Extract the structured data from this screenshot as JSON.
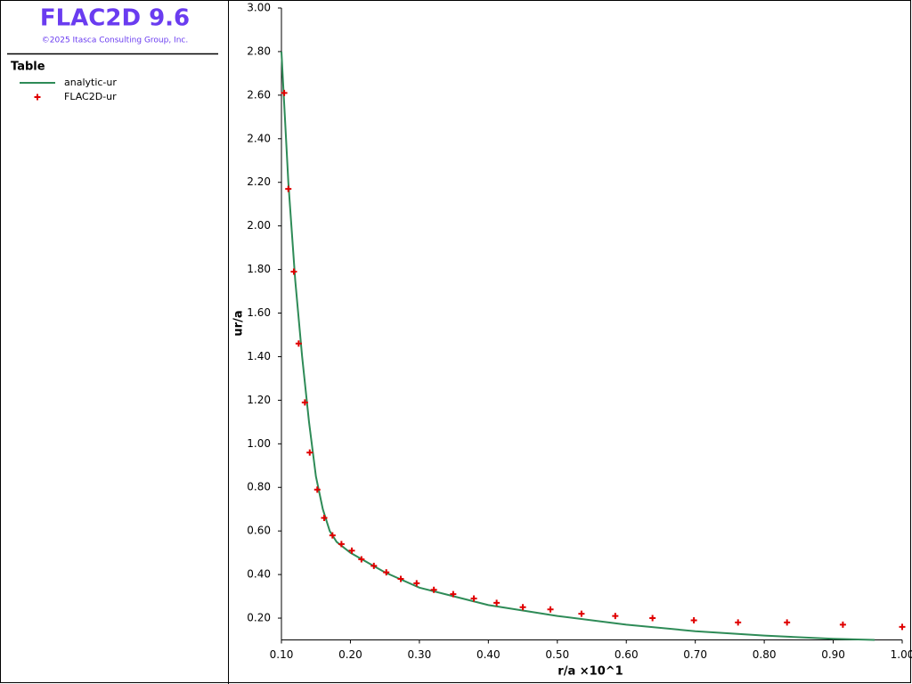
{
  "app": {
    "title": "FLAC2D 9.6",
    "copyright": "©2025 Itasca Consulting Group, Inc.",
    "legend_title": "Table"
  },
  "chart_data": {
    "type": "line",
    "xlabel": "r/a ×10^1",
    "ylabel": "ur/a",
    "xlim": [
      0.1,
      1.0
    ],
    "ylim": [
      0.1,
      3.0
    ],
    "xticks": [
      {
        "value": 0.1,
        "label": "0.10"
      },
      {
        "value": 0.2,
        "label": "0.20"
      },
      {
        "value": 0.3,
        "label": "0.30"
      },
      {
        "value": 0.4,
        "label": "0.40"
      },
      {
        "value": 0.5,
        "label": "0.50"
      },
      {
        "value": 0.6,
        "label": "0.60"
      },
      {
        "value": 0.7,
        "label": "0.70"
      },
      {
        "value": 0.8,
        "label": "0.80"
      },
      {
        "value": 0.9,
        "label": "0.90"
      },
      {
        "value": 1.0,
        "label": "1.00"
      }
    ],
    "yticks": [
      {
        "value": 0.2,
        "label": "0.20"
      },
      {
        "value": 0.4,
        "label": "0.40"
      },
      {
        "value": 0.6,
        "label": "0.60"
      },
      {
        "value": 0.8,
        "label": "0.80"
      },
      {
        "value": 1.0,
        "label": "1.00"
      },
      {
        "value": 1.2,
        "label": "1.20"
      },
      {
        "value": 1.4,
        "label": "1.40"
      },
      {
        "value": 1.6,
        "label": "1.60"
      },
      {
        "value": 1.8,
        "label": "1.80"
      },
      {
        "value": 2.0,
        "label": "2.00"
      },
      {
        "value": 2.2,
        "label": "2.20"
      },
      {
        "value": 2.4,
        "label": "2.40"
      },
      {
        "value": 2.6,
        "label": "2.60"
      },
      {
        "value": 2.8,
        "label": "2.80"
      },
      {
        "value": 3.0,
        "label": "3.00"
      }
    ],
    "series": [
      {
        "name": "analytic-ur",
        "color": "#2e8b57",
        "style": "line",
        "x": [
          0.1,
          0.11,
          0.12,
          0.13,
          0.14,
          0.15,
          0.16,
          0.17,
          0.18,
          0.2,
          0.25,
          0.3,
          0.4,
          0.5,
          0.6,
          0.7,
          0.8,
          0.9,
          0.96
        ],
        "values": [
          2.8,
          2.2,
          1.75,
          1.4,
          1.1,
          0.85,
          0.7,
          0.6,
          0.55,
          0.5,
          0.41,
          0.34,
          0.26,
          0.21,
          0.17,
          0.14,
          0.12,
          0.105,
          0.1
        ]
      },
      {
        "name": "FLAC2D-ur",
        "color": "#e00000",
        "style": "plus",
        "x": [
          0.104,
          0.11,
          0.118,
          0.125,
          0.134,
          0.141,
          0.152,
          0.162,
          0.174,
          0.187,
          0.202,
          0.216,
          0.234,
          0.252,
          0.273,
          0.296,
          0.321,
          0.349,
          0.379,
          0.412,
          0.45,
          0.49,
          0.535,
          0.584,
          0.638,
          0.698,
          0.762,
          0.833,
          0.914,
          1.0
        ],
        "values": [
          2.61,
          2.17,
          1.79,
          1.46,
          1.19,
          0.96,
          0.79,
          0.66,
          0.58,
          0.54,
          0.51,
          0.47,
          0.44,
          0.41,
          0.38,
          0.36,
          0.33,
          0.31,
          0.29,
          0.27,
          0.25,
          0.24,
          0.22,
          0.21,
          0.2,
          0.19,
          0.18,
          0.18,
          0.17,
          0.16
        ]
      }
    ]
  }
}
